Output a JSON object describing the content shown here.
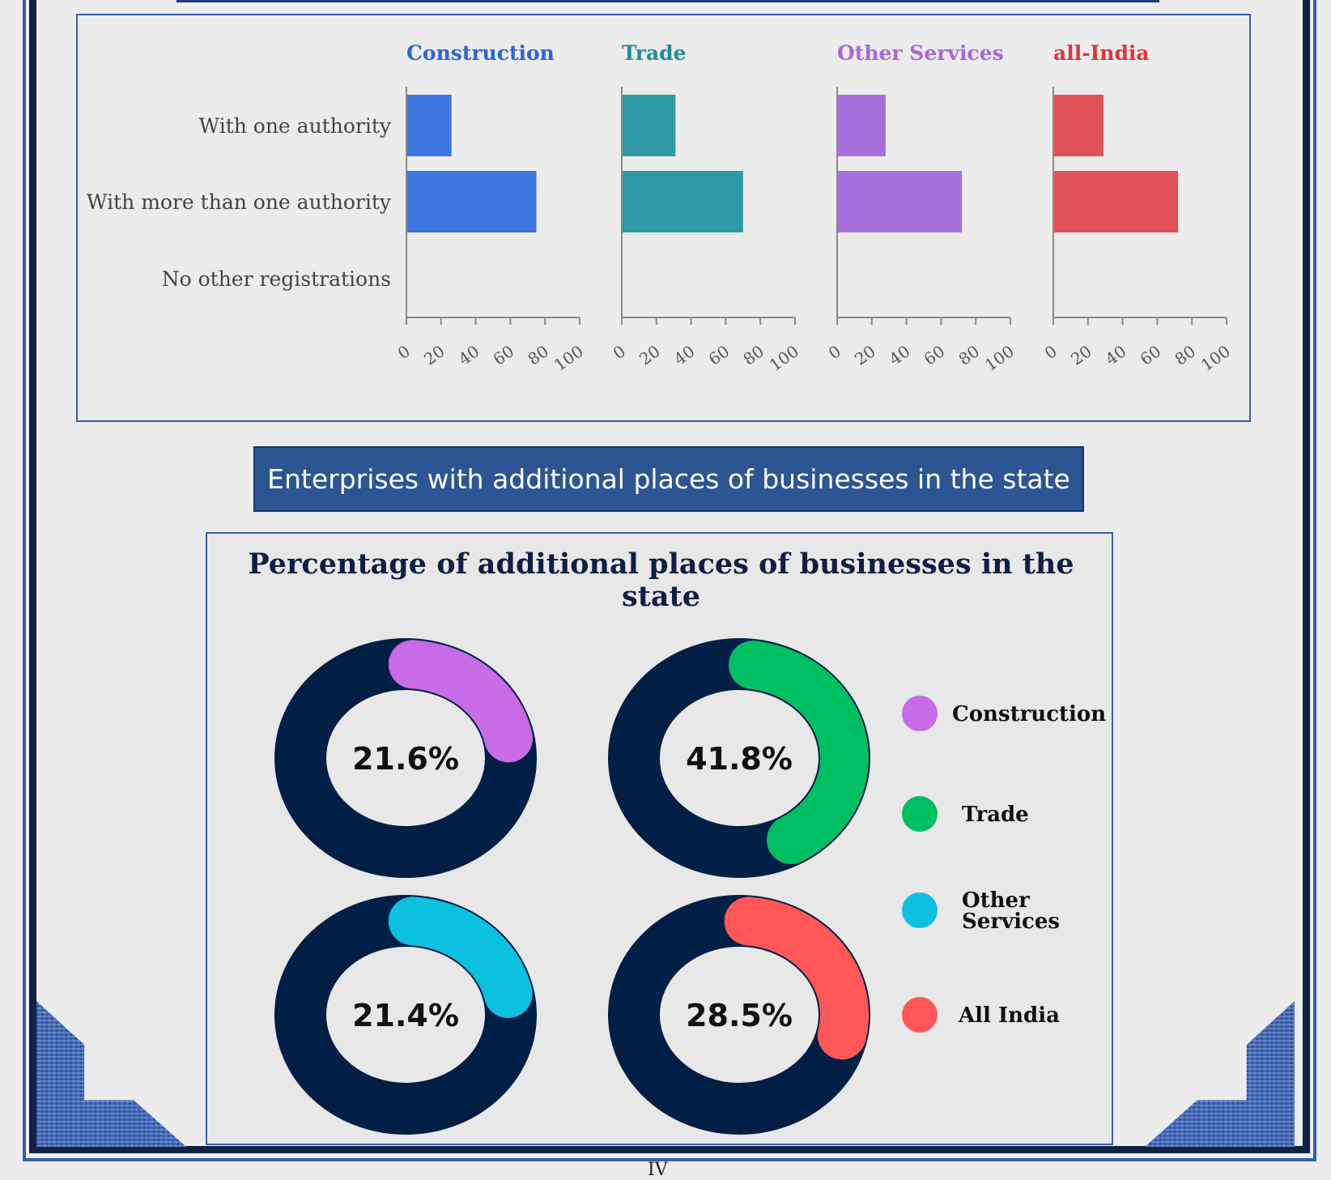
{
  "top_chart": {
    "chart_data": {
      "type": "bar",
      "orientation": "horizontal",
      "categories": [
        "With one authority",
        "With more than one authority",
        "No other registrations"
      ],
      "panels": [
        {
          "name": "Construction",
          "color": "#3c74e0",
          "values": [
            26,
            75,
            0
          ]
        },
        {
          "name": "Trade",
          "color": "#2e9aa3",
          "values": [
            31,
            70,
            0
          ]
        },
        {
          "name": "Other Services",
          "color": "#a870dd",
          "values": [
            28,
            72,
            0
          ]
        },
        {
          "name": "all-India",
          "color": "#e05257",
          "values": [
            29,
            72,
            0
          ]
        }
      ],
      "xlim": [
        0,
        100
      ],
      "xticks": [
        "0",
        "20",
        "40",
        "60",
        "80",
        "100"
      ],
      "title_colors": [
        "#2f63d6",
        "#1f8f95",
        "#a56ad8",
        "#d8383f"
      ]
    }
  },
  "banner": {
    "text": "Enterprises with additional places of businesses in the state"
  },
  "donut_chart": {
    "title_line1": "Percentage of additional places of businesses in the",
    "title_line2": "state",
    "chart_data": {
      "type": "pie",
      "style": "donut",
      "series": [
        {
          "name": "Construction",
          "value": 21.6,
          "label": "21.6%",
          "color": "#c76be6"
        },
        {
          "name": "Trade",
          "value": 41.8,
          "label": "41.8%",
          "color": "#00bf63"
        },
        {
          "name": "Other Services",
          "value": 21.4,
          "label": "21.4%",
          "color": "#0cc0df"
        },
        {
          "name": "All India",
          "value": 28.5,
          "label": "28.5%",
          "color": "#ff5757"
        }
      ],
      "remainder_color": "#011e45",
      "legend": [
        "Construction",
        "Trade",
        "Other Services",
        "All India"
      ],
      "legend_placement": "right"
    }
  },
  "page_number": "IV"
}
